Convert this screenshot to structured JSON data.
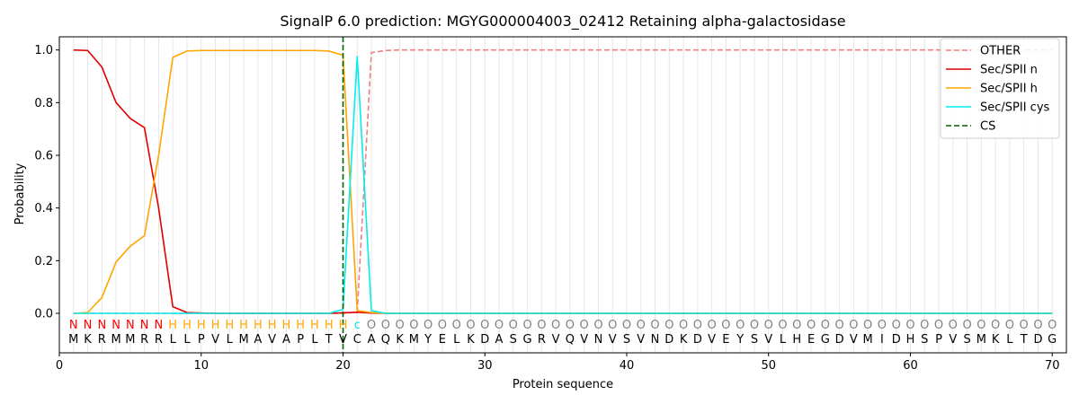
{
  "chart_data": {
    "type": "line",
    "title": "SignalP 6.0 prediction: MGYG000004003_02412 Retaining alpha-galactosidase",
    "xlabel": "Protein sequence",
    "ylabel": "Probability",
    "xlim": [
      0,
      71
    ],
    "ylim": [
      -0.15,
      1.05
    ],
    "xticks": [
      0,
      10,
      20,
      30,
      40,
      50,
      60,
      70
    ],
    "yticks": [
      0.0,
      0.2,
      0.4,
      0.6,
      0.8,
      1.0
    ],
    "xtick_labels": [
      "0",
      "10",
      "20",
      "30",
      "40",
      "50",
      "60",
      "70"
    ],
    "ytick_labels": [
      "0.0",
      "0.2",
      "0.4",
      "0.6",
      "0.8",
      "1.0"
    ],
    "grid": "vertical lines at each residue",
    "legend_position": "top-right",
    "sequence": [
      "M",
      "K",
      "R",
      "M",
      "M",
      "R",
      "R",
      "L",
      "L",
      "P",
      "V",
      "L",
      "M",
      "A",
      "V",
      "A",
      "P",
      "L",
      "T",
      "V",
      "C",
      "A",
      "Q",
      "K",
      "M",
      "Y",
      "E",
      "L",
      "K",
      "D",
      "A",
      "S",
      "G",
      "R",
      "V",
      "Q",
      "V",
      "N",
      "V",
      "S",
      "V",
      "N",
      "D",
      "K",
      "D",
      "V",
      "E",
      "Y",
      "S",
      "V",
      "L",
      "H",
      "E",
      "G",
      "D",
      "V",
      "M",
      "I",
      "D",
      "H",
      "S",
      "P",
      "V",
      "S",
      "M",
      "K",
      "L",
      "T",
      "D",
      "G"
    ],
    "region_labels": [
      "N",
      "N",
      "N",
      "N",
      "N",
      "N",
      "N",
      "H",
      "H",
      "H",
      "H",
      "H",
      "H",
      "H",
      "H",
      "H",
      "H",
      "H",
      "H",
      "H",
      "c",
      "O",
      "O",
      "O",
      "O",
      "O",
      "O",
      "O",
      "O",
      "O",
      "O",
      "O",
      "O",
      "O",
      "O",
      "O",
      "O",
      "O",
      "O",
      "O",
      "O",
      "O",
      "O",
      "O",
      "O",
      "O",
      "O",
      "O",
      "O",
      "O",
      "O",
      "O",
      "O",
      "O",
      "O",
      "O",
      "O",
      "O",
      "O",
      "O",
      "O",
      "O",
      "O",
      "O",
      "O",
      "O",
      "O",
      "O",
      "O",
      "O"
    ],
    "region_label_colors": {
      "N": "#ff0000",
      "H": "#ffa500",
      "c": "#00e5ee",
      "O": "#808080"
    },
    "series": [
      {
        "name": "OTHER",
        "color": "#f08080",
        "style": "dashed",
        "values": [
          0,
          0,
          0,
          0,
          0,
          0,
          0,
          0,
          0,
          0,
          0,
          0,
          0,
          0,
          0,
          0,
          0,
          0,
          0,
          0,
          0.005,
          0.99,
          0.998,
          1,
          1,
          1,
          1,
          1,
          1,
          1,
          1,
          1,
          1,
          1,
          1,
          1,
          1,
          1,
          1,
          1,
          1,
          1,
          1,
          1,
          1,
          1,
          1,
          1,
          1,
          1,
          1,
          1,
          1,
          1,
          1,
          1,
          1,
          1,
          1,
          1,
          1,
          1,
          1,
          1,
          1,
          1,
          1,
          1,
          1,
          1
        ]
      },
      {
        "name": "Sec/SPII n",
        "color": "#e00000",
        "style": "solid",
        "values": [
          1.0,
          0.998,
          0.935,
          0.8,
          0.74,
          0.705,
          0.4,
          0.025,
          0.003,
          0.001,
          0,
          0,
          0,
          0,
          0,
          0,
          0,
          0,
          0,
          0.002,
          0.004,
          0.001,
          0,
          0,
          0,
          0,
          0,
          0,
          0,
          0,
          0,
          0,
          0,
          0,
          0,
          0,
          0,
          0,
          0,
          0,
          0,
          0,
          0,
          0,
          0,
          0,
          0,
          0,
          0,
          0,
          0,
          0,
          0,
          0,
          0,
          0,
          0,
          0,
          0,
          0,
          0,
          0,
          0,
          0,
          0,
          0,
          0,
          0,
          0,
          0
        ]
      },
      {
        "name": "Sec/SPII h",
        "color": "#ffa500",
        "style": "solid",
        "values": [
          0,
          0.003,
          0.06,
          0.195,
          0.255,
          0.295,
          0.6,
          0.972,
          0.996,
          0.998,
          0.998,
          0.998,
          0.998,
          0.998,
          0.998,
          0.998,
          0.998,
          0.998,
          0.996,
          0.98,
          0.01,
          0.003,
          0,
          0,
          0,
          0,
          0,
          0,
          0,
          0,
          0,
          0,
          0,
          0,
          0,
          0,
          0,
          0,
          0,
          0,
          0,
          0,
          0,
          0,
          0,
          0,
          0,
          0,
          0,
          0,
          0,
          0,
          0,
          0,
          0,
          0,
          0,
          0,
          0,
          0,
          0,
          0,
          0,
          0,
          0,
          0,
          0,
          0,
          0,
          0
        ]
      },
      {
        "name": "Sec/SPII cys",
        "color": "#00eeee",
        "style": "solid",
        "values": [
          0,
          0,
          0,
          0,
          0,
          0,
          0,
          0,
          0,
          0,
          0,
          0,
          0,
          0,
          0,
          0,
          0,
          0,
          0,
          0.015,
          0.975,
          0.01,
          0,
          0,
          0,
          0,
          0,
          0,
          0,
          0,
          0,
          0,
          0,
          0,
          0,
          0,
          0,
          0,
          0,
          0,
          0,
          0,
          0,
          0,
          0,
          0,
          0,
          0,
          0,
          0,
          0,
          0,
          0,
          0,
          0,
          0,
          0,
          0,
          0,
          0,
          0,
          0,
          0,
          0,
          0,
          0,
          0,
          0,
          0,
          0
        ]
      }
    ],
    "cs": {
      "name": "CS",
      "x": 20,
      "color": "#006400",
      "style": "dashed"
    }
  }
}
